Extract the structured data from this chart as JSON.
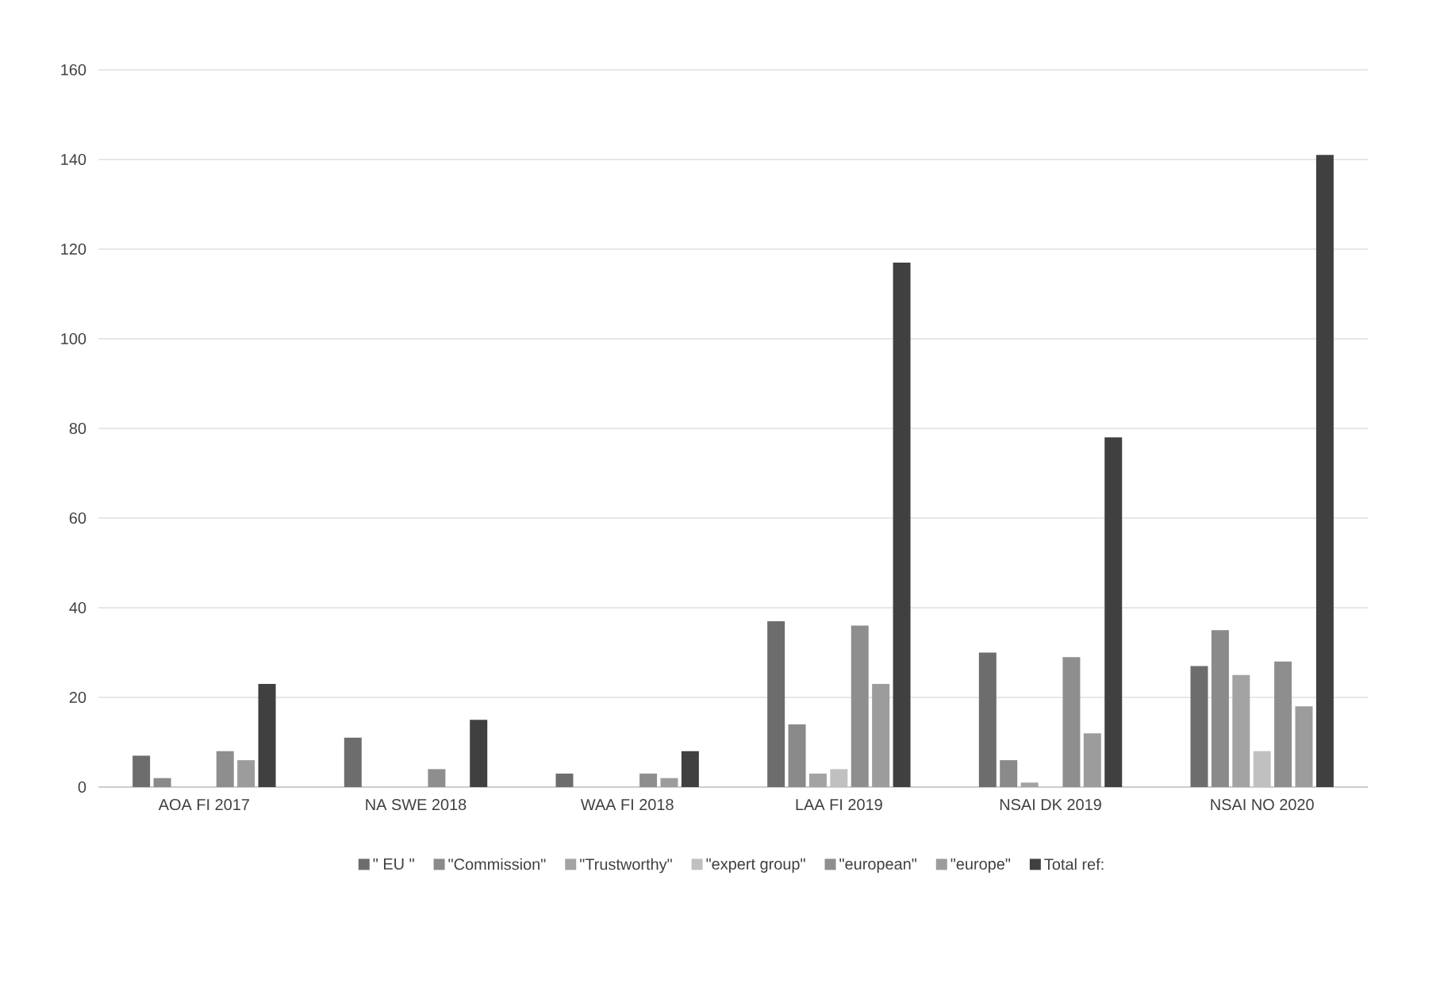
{
  "chart_data": {
    "type": "bar",
    "categories": [
      "AOA FI 2017",
      "NA SWE 2018",
      "WAA FI 2018",
      "LAA FI 2019",
      "NSAI DK 2019",
      "NSAI NO 2020"
    ],
    "series": [
      {
        "name": "\" EU \"",
        "color": "#6d6d6d",
        "values": [
          7,
          11,
          3,
          37,
          30,
          27
        ]
      },
      {
        "name": "\"Commission\"",
        "color": "#8a8a8a",
        "values": [
          2,
          0,
          0,
          14,
          6,
          35
        ]
      },
      {
        "name": "\"Trustworthy\"",
        "color": "#a3a3a3",
        "values": [
          0,
          0,
          0,
          3,
          1,
          25
        ]
      },
      {
        "name": "\"expert group\"",
        "color": "#c0c0c0",
        "values": [
          0,
          0,
          0,
          4,
          0,
          8
        ]
      },
      {
        "name": "\"european\"",
        "color": "#8e8e8e",
        "values": [
          8,
          4,
          3,
          36,
          29,
          28
        ]
      },
      {
        "name": "\"europe\"",
        "color": "#9c9c9c",
        "values": [
          6,
          0,
          2,
          23,
          12,
          18
        ]
      },
      {
        "name": "Total ref:",
        "color": "#404040",
        "values": [
          23,
          15,
          8,
          117,
          78,
          141
        ]
      }
    ],
    "ylim": [
      0,
      160
    ],
    "yticks": [
      0,
      20,
      40,
      60,
      80,
      100,
      120,
      140,
      160
    ],
    "grid": "y",
    "legend": "bottom"
  }
}
